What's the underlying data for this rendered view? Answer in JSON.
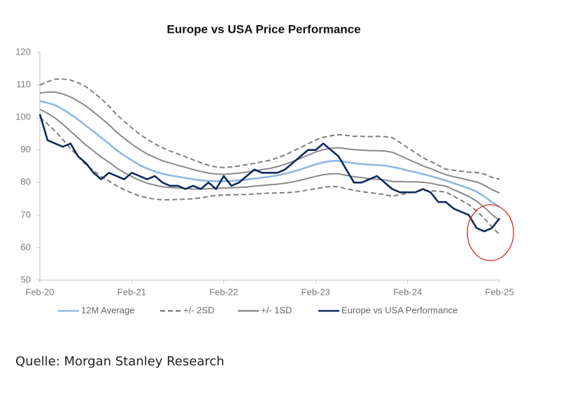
{
  "chart_data": {
    "type": "line",
    "title": "Europe vs USA Price Performance",
    "categories": [
      "Feb-20",
      null,
      null,
      null,
      null,
      null,
      null,
      null,
      null,
      null,
      null,
      null,
      "Feb-21",
      null,
      null,
      null,
      null,
      null,
      null,
      null,
      null,
      null,
      null,
      null,
      "Feb-22",
      null,
      null,
      null,
      null,
      null,
      null,
      null,
      null,
      null,
      null,
      null,
      "Feb-23",
      null,
      null,
      null,
      null,
      null,
      null,
      null,
      null,
      null,
      null,
      null,
      "Feb-24",
      null,
      null,
      null,
      null,
      null,
      null,
      null,
      null,
      null,
      null,
      null,
      "Feb-25"
    ],
    "ylim": [
      50,
      120
    ],
    "yticks": [
      50,
      60,
      70,
      80,
      90,
      100,
      110,
      120
    ],
    "grid": false,
    "series": [
      {
        "name": "12M Average",
        "color": "#8db8e3",
        "dash": false,
        "values": [
          105,
          104.5,
          103.8,
          102.5,
          101,
          99.3,
          97.5,
          95.7,
          93.8,
          92,
          90,
          88.3,
          86.8,
          85.4,
          84.3,
          83.4,
          82.7,
          82.2,
          81.8,
          81.4,
          81,
          80.7,
          80.5,
          80.4,
          80.4,
          80.5,
          80.7,
          80.9,
          81.2,
          81.5,
          81.8,
          82.2,
          82.7,
          83.3,
          84,
          84.8,
          85.6,
          86.2,
          86.6,
          86.7,
          86.3,
          85.9,
          85.7,
          85.5,
          85.4,
          85.2,
          84.8,
          84.3,
          83.7,
          83.2,
          82.6,
          82,
          81.3,
          80.6,
          79.8,
          79,
          78.2,
          77.2,
          75.8,
          74,
          72.5
        ]
      },
      {
        "name": "+/- 2SD",
        "color": "#7f7f7f",
        "dash": true,
        "values": [
          110,
          111,
          111.8,
          111.8,
          111.5,
          110.6,
          109.5,
          107.7,
          105.8,
          103.5,
          101,
          98.8,
          96.8,
          94.9,
          93.3,
          91.9,
          90.7,
          89.7,
          88.8,
          87.9,
          87,
          86.1,
          85.3,
          84.8,
          84.6,
          84.8,
          85.1,
          85.5,
          85.9,
          86.4,
          86.8,
          87.6,
          88.5,
          89.6,
          90.7,
          91.9,
          93.1,
          93.9,
          94.4,
          94.7,
          94.5,
          94.2,
          94.2,
          94.1,
          94.2,
          94.1,
          93.8,
          92.3,
          90.7,
          89.2,
          87.6,
          86.5,
          85.3,
          84.1,
          83.8,
          83.5,
          83.2,
          83.1,
          82.6,
          81.6,
          81
        ],
        "lower": [
          100,
          98,
          95.8,
          93.2,
          90.5,
          88,
          85.5,
          83.7,
          81.8,
          80.5,
          79,
          77.8,
          76.8,
          75.9,
          75.3,
          74.9,
          74.7,
          74.7,
          74.8,
          74.9,
          75,
          75.3,
          75.7,
          76,
          76.2,
          76.2,
          76.3,
          76.3,
          76.5,
          76.6,
          76.8,
          76.8,
          76.9,
          77,
          77.3,
          77.7,
          78.1,
          78.5,
          78.8,
          78.7,
          78.1,
          77.6,
          77.2,
          76.9,
          76.6,
          76.3,
          75.8,
          76.3,
          76.7,
          77.2,
          77.6,
          77.5,
          77.3,
          77.1,
          75.8,
          74.5,
          73.2,
          71.3,
          69,
          66.4,
          64
        ]
      },
      {
        "name": "+/- 1SD",
        "color": "#8a8a8a",
        "dash": false,
        "values": [
          107.5,
          107.8,
          107.8,
          107.2,
          106.3,
          105,
          103.5,
          101.7,
          99.8,
          97.8,
          95.5,
          93.6,
          91.8,
          90.2,
          88.8,
          87.7,
          86.7,
          86,
          85.3,
          84.7,
          84,
          83.4,
          82.9,
          82.6,
          82.5,
          82.7,
          82.9,
          83.2,
          83.6,
          84,
          84.3,
          84.9,
          85.6,
          86.5,
          87.4,
          88.4,
          89.4,
          90.1,
          90.5,
          90.7,
          90.4,
          90.1,
          90,
          89.8,
          89.8,
          89.7,
          89.3,
          88.3,
          87.2,
          86.2,
          85.1,
          84.3,
          83.3,
          82.4,
          81.8,
          81.3,
          80.7,
          80.2,
          79.2,
          77.8,
          76.8
        ],
        "lower": [
          102.5,
          101.3,
          99.8,
          97.9,
          95.8,
          93.7,
          91.5,
          89.7,
          87.8,
          86.3,
          84.5,
          83.1,
          81.8,
          80.7,
          79.8,
          79.2,
          78.7,
          78.5,
          78.3,
          78.2,
          78,
          78,
          78.1,
          78.2,
          78.3,
          78.4,
          78.5,
          78.6,
          78.9,
          79.1,
          79.3,
          79.5,
          79.8,
          80.2,
          80.7,
          81.3,
          81.9,
          82.4,
          82.7,
          82.7,
          82.2,
          81.8,
          81.5,
          81.2,
          81,
          80.8,
          80.3,
          80.3,
          80.2,
          80.2,
          80.1,
          79.8,
          79.3,
          78.9,
          77.8,
          76.8,
          75.7,
          74.3,
          72.4,
          70.2,
          68.3
        ]
      },
      {
        "name": "Europe vs USA Performance",
        "color": "#0d2a5c",
        "dash": false,
        "values": [
          101,
          93,
          92,
          91,
          92,
          88,
          86,
          83,
          81,
          83,
          82,
          81,
          83,
          82,
          81,
          82,
          80,
          79,
          79,
          78,
          79,
          78,
          80,
          78,
          82,
          79,
          80,
          82,
          84,
          83,
          83,
          83,
          84,
          86,
          88,
          90,
          90,
          92,
          90,
          88,
          84,
          80,
          80,
          81,
          82,
          80,
          78,
          77,
          77,
          77,
          78,
          77,
          74,
          74,
          72,
          71,
          70,
          66,
          65,
          66,
          69
        ]
      }
    ]
  },
  "source": "Quelle: Morgan Stanley Research"
}
